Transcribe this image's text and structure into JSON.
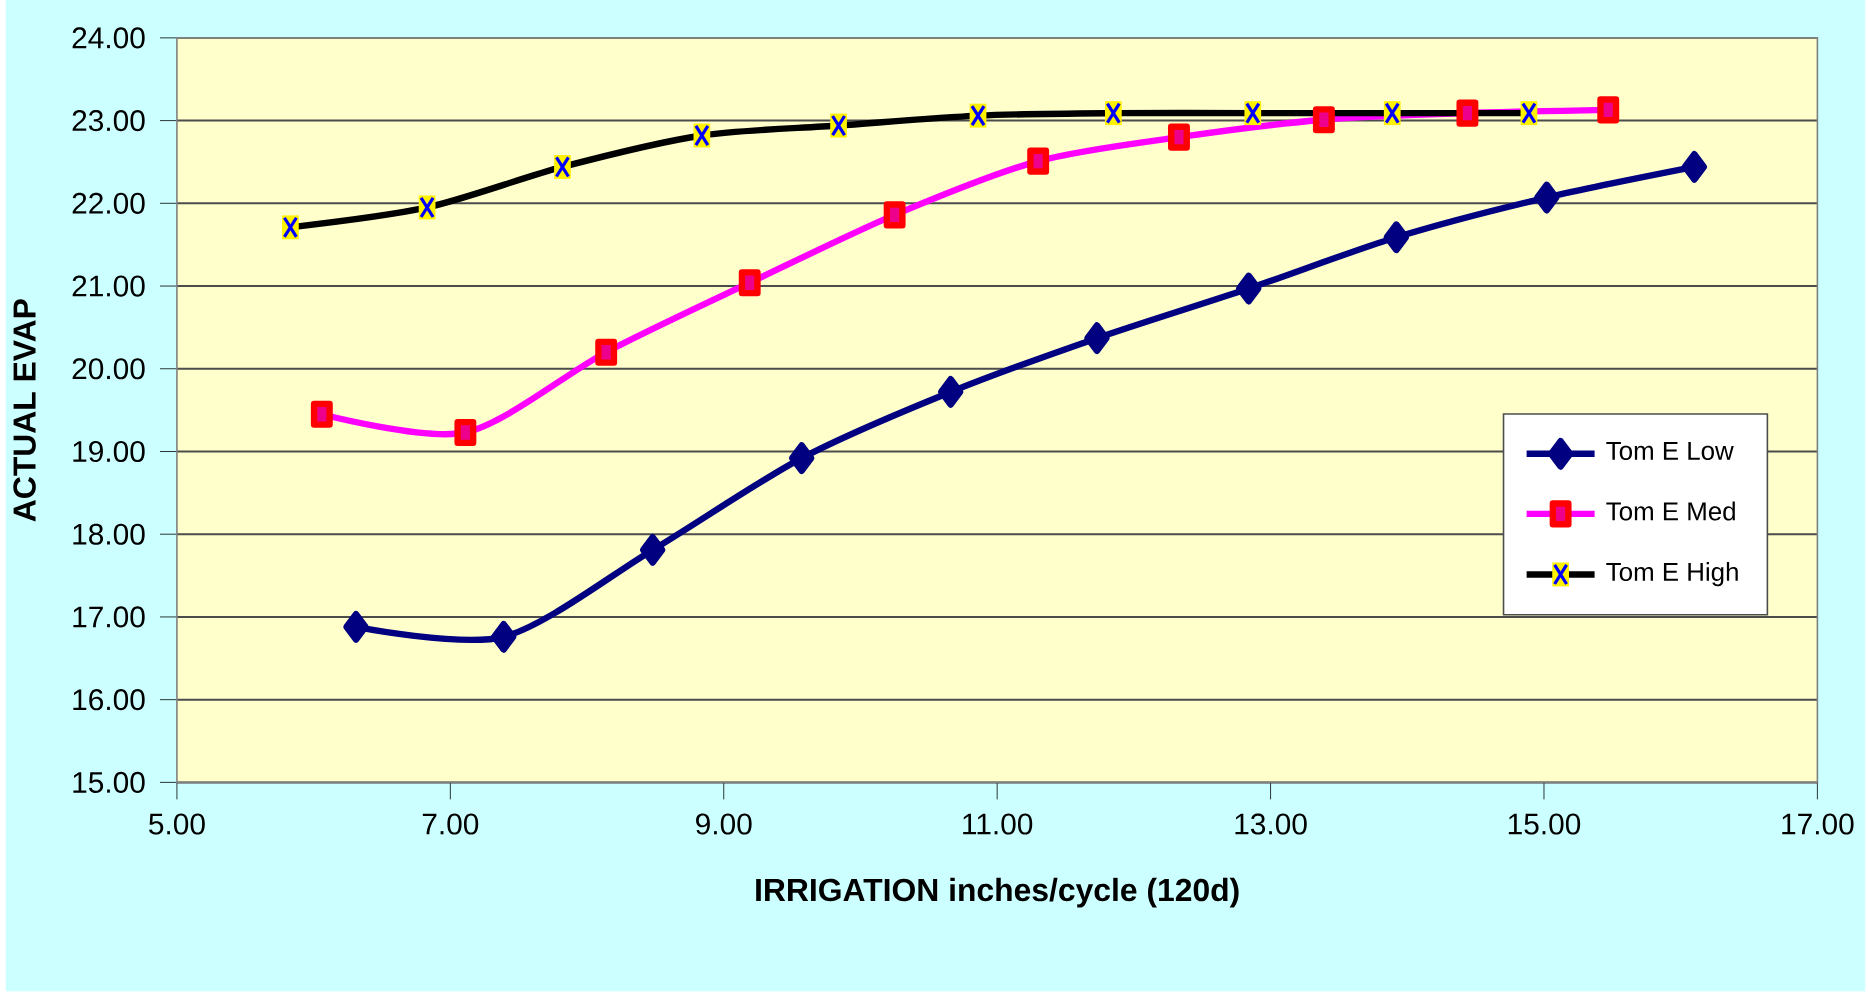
{
  "chart_data": {
    "type": "line",
    "xlabel": "IRRIGATION inches/cycle (120d)",
    "ylabel": "ACTUAL EVAP",
    "xlim": [
      5,
      17
    ],
    "xticks": [
      {
        "value": 5,
        "label": "5.00"
      },
      {
        "value": 7,
        "label": "7.00"
      },
      {
        "value": 9,
        "label": "9.00"
      },
      {
        "value": 11,
        "label": "11.00"
      },
      {
        "value": 13,
        "label": "13.00"
      },
      {
        "value": 15,
        "label": "15.00"
      },
      {
        "value": 17,
        "label": "17.00"
      }
    ],
    "ylim": [
      15,
      24
    ],
    "yticks": [
      {
        "value": 15,
        "label": "15.00"
      },
      {
        "value": 16,
        "label": "16.00"
      },
      {
        "value": 17,
        "label": "17.00"
      },
      {
        "value": 18,
        "label": "18.00"
      },
      {
        "value": 19,
        "label": "19.00"
      },
      {
        "value": 20,
        "label": "20.00"
      },
      {
        "value": 21,
        "label": "21.00"
      },
      {
        "value": 22,
        "label": "22.00"
      },
      {
        "value": 23,
        "label": "23.00"
      },
      {
        "value": 24,
        "label": "24.00"
      }
    ],
    "grid": "y",
    "legend": "right",
    "series": [
      {
        "name": "Tom E Low",
        "color": "#000080",
        "marker": "diamond",
        "x": [
          6.31,
          7.39,
          8.48,
          9.57,
          10.66,
          11.73,
          12.84,
          13.92,
          15.02,
          16.1
        ],
        "values": [
          16.88,
          16.76,
          17.81,
          18.92,
          19.72,
          20.37,
          20.97,
          21.59,
          22.07,
          22.44
        ]
      },
      {
        "name": "Tom E Med",
        "color": "#ff00ff",
        "marker": "square",
        "x": [
          6.06,
          7.11,
          8.14,
          9.19,
          10.25,
          11.3,
          12.33,
          13.39,
          14.44,
          15.47
        ],
        "values": [
          19.45,
          19.23,
          20.2,
          21.04,
          21.86,
          22.51,
          22.8,
          23.01,
          23.09,
          23.13
        ]
      },
      {
        "name": "Tom E High",
        "color": "#000000",
        "marker": "square",
        "x": [
          5.83,
          6.83,
          7.82,
          8.84,
          9.84,
          10.86,
          11.85,
          12.87,
          13.89,
          14.89
        ],
        "values": [
          21.71,
          21.95,
          22.44,
          22.82,
          22.94,
          23.06,
          23.09,
          23.09,
          23.09,
          23.09
        ]
      }
    ]
  }
}
